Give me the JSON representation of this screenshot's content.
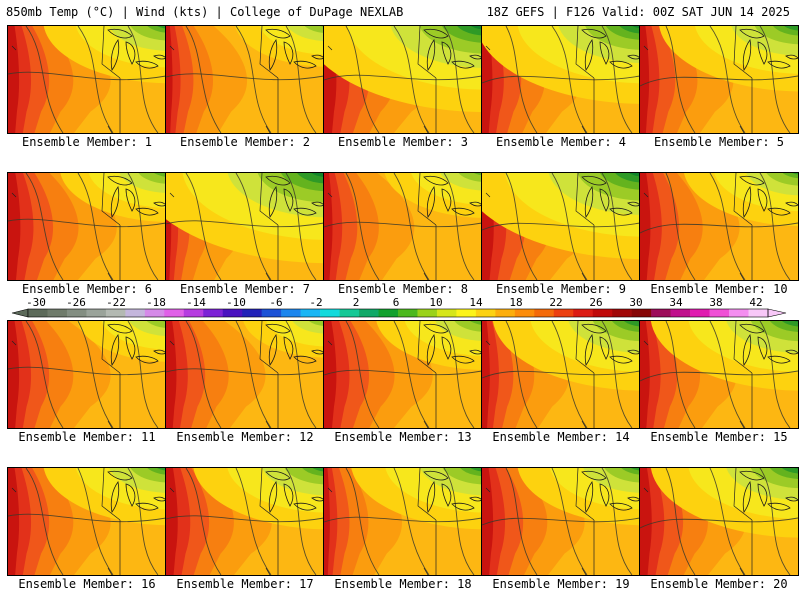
{
  "header": {
    "left": "850mb Temp (°C) | Wind (kts) | College of DuPage NEXLAB",
    "right": "18Z GEFS | F126 Valid: 00Z SAT JUN 14 2025"
  },
  "caption_prefix": "Ensemble Member:",
  "members": [
    {
      "label": "Ensemble Member: 1",
      "number": 1,
      "ne_level": 0.45,
      "west_heat": 0.75
    },
    {
      "label": "Ensemble Member: 2",
      "number": 2,
      "ne_level": 0.25,
      "west_heat": 0.4
    },
    {
      "label": "Ensemble Member: 3",
      "number": 3,
      "ne_level": 0.8,
      "west_heat": 0.85
    },
    {
      "label": "Ensemble Member: 4",
      "number": 4,
      "ne_level": 0.7,
      "west_heat": 0.7
    },
    {
      "label": "Ensemble Member: 5",
      "number": 5,
      "ne_level": 0.55,
      "west_heat": 0.6
    },
    {
      "label": "Ensemble Member: 6",
      "number": 6,
      "ne_level": 0.35,
      "west_heat": 0.85
    },
    {
      "label": "Ensemble Member: 7",
      "number": 7,
      "ne_level": 0.85,
      "west_heat": 0.3
    },
    {
      "label": "Ensemble Member: 8",
      "number": 8,
      "ne_level": 0.3,
      "west_heat": 0.55
    },
    {
      "label": "Ensemble Member: 9",
      "number": 9,
      "ne_level": 0.8,
      "west_heat": 0.8
    },
    {
      "label": "Ensemble Member: 10",
      "number": 10,
      "ne_level": 0.4,
      "west_heat": 0.7
    },
    {
      "label": "Ensemble Member: 11",
      "number": 11,
      "ne_level": 0.25,
      "west_heat": 0.75
    },
    {
      "label": "Ensemble Member: 12",
      "number": 12,
      "ne_level": 0.2,
      "west_heat": 0.7
    },
    {
      "label": "Ensemble Member: 13",
      "number": 13,
      "ne_level": 0.35,
      "west_heat": 0.85
    },
    {
      "label": "Ensemble Member: 14",
      "number": 14,
      "ne_level": 0.6,
      "west_heat": 0.5
    },
    {
      "label": "Ensemble Member: 15",
      "number": 15,
      "ne_level": 0.6,
      "west_heat": 0.65
    },
    {
      "label": "Ensemble Member: 16",
      "number": 16,
      "ne_level": 0.45,
      "west_heat": 0.75
    },
    {
      "label": "Ensemble Member: 17",
      "number": 17,
      "ne_level": 0.5,
      "west_heat": 0.8
    },
    {
      "label": "Ensemble Member: 18",
      "number": 18,
      "ne_level": 0.5,
      "west_heat": 0.35
    },
    {
      "label": "Ensemble Member: 19",
      "number": 19,
      "ne_level": 0.45,
      "west_heat": 0.75
    },
    {
      "label": "Ensemble Member: 20",
      "number": 20,
      "ne_level": 0.6,
      "west_heat": 0.8
    }
  ],
  "colorbar": {
    "tick_labels": [
      "-30",
      "-26",
      "-22",
      "-18",
      "-14",
      "-10",
      "-6",
      "-2",
      "2",
      "6",
      "10",
      "14",
      "18",
      "22",
      "26",
      "30",
      "34",
      "38",
      "42"
    ],
    "colors": [
      "#5c6a5a",
      "#6f7b6b",
      "#838e82",
      "#9aa39a",
      "#b3b9b2",
      "#c4b6dc",
      "#d58ae8",
      "#e060e8",
      "#b63ce0",
      "#7c22d6",
      "#4a12c0",
      "#2222b8",
      "#1c52d6",
      "#1c86ee",
      "#1ab6f5",
      "#12dadc",
      "#14c896",
      "#10a868",
      "#12a02e",
      "#4cb81e",
      "#9ad21a",
      "#d6e61a",
      "#fcf41a",
      "#fcd212",
      "#fcae0c",
      "#fc8c0a",
      "#f46a0a",
      "#ec4010",
      "#dc1c14",
      "#c00a0a",
      "#a00808",
      "#860606",
      "#9c0c5a",
      "#c0108c",
      "#e01cb0",
      "#f050d6",
      "#f48ef0",
      "#f8c8f8"
    ]
  },
  "field_colors": {
    "hot": [
      "#c9140f",
      "#e2311a",
      "#f0571a",
      "#f77f10",
      "#fb9d0e",
      "#fdb712",
      "#fdd20f",
      "#f7e71c"
    ],
    "cool": [
      "#cfe23a",
      "#9ccb26",
      "#64b31e",
      "#2e9a26",
      "#11852a"
    ]
  }
}
